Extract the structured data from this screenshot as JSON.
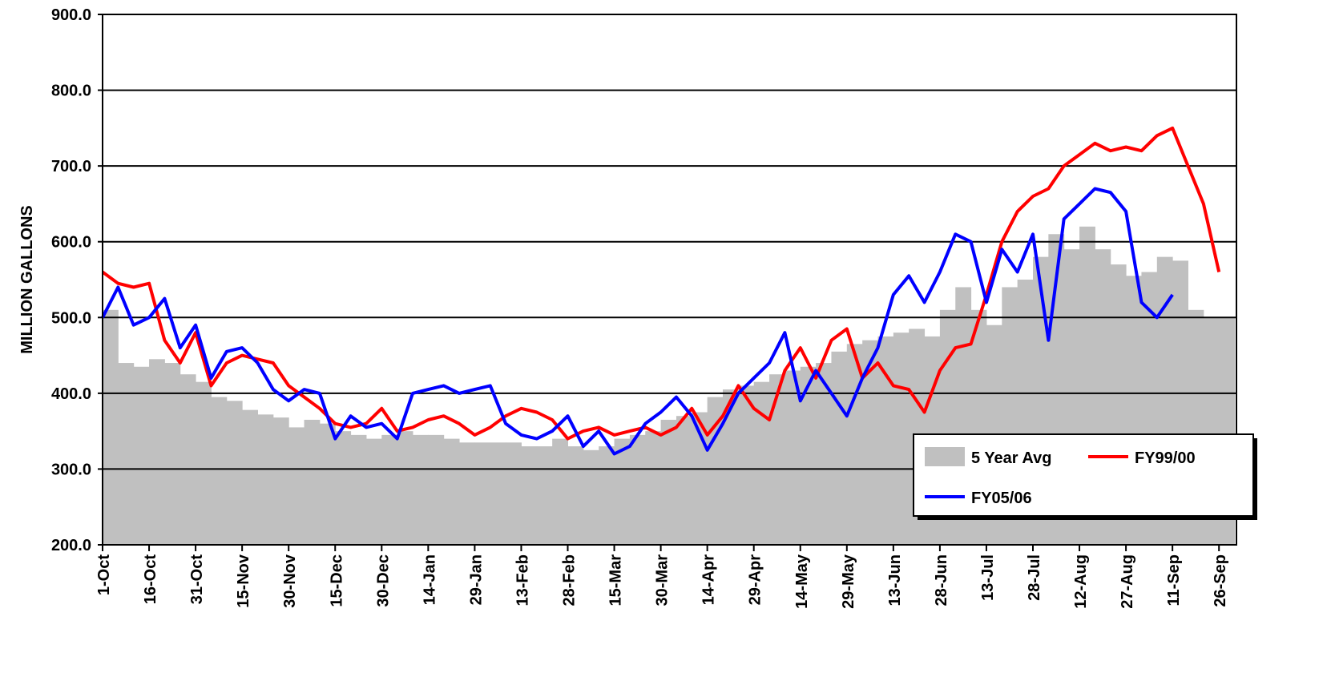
{
  "chart_data": {
    "type": "bar-line",
    "y_label": "MILLION GALLONS",
    "categories": [
      "1-Oct",
      null,
      null,
      "16-Oct",
      null,
      null,
      "31-Oct",
      null,
      null,
      "15-Nov",
      null,
      null,
      "30-Nov",
      null,
      null,
      "15-Dec",
      null,
      null,
      "30-Dec",
      null,
      null,
      "14-Jan",
      null,
      null,
      "29-Jan",
      null,
      null,
      "13-Feb",
      null,
      null,
      "28-Feb",
      null,
      null,
      "15-Mar",
      null,
      null,
      "30-Mar",
      null,
      null,
      "14-Apr",
      null,
      null,
      "29-Apr",
      null,
      null,
      "14-May",
      null,
      null,
      "29-May",
      null,
      null,
      "13-Jun",
      null,
      null,
      "28-Jun",
      null,
      null,
      "13-Jul",
      null,
      null,
      "28-Jul",
      null,
      null,
      "12-Aug",
      null,
      null,
      "27-Aug",
      null,
      null,
      "11-Sep",
      null,
      null,
      "26-Sep"
    ],
    "series": [
      {
        "name": "5 Year Avg",
        "kind": "bar",
        "color": "#c0c0c0",
        "values": [
          510,
          440,
          435,
          445,
          440,
          425,
          415,
          395,
          390,
          378,
          372,
          368,
          355,
          365,
          360,
          350,
          345,
          340,
          345,
          350,
          345,
          345,
          340,
          335,
          335,
          335,
          335,
          330,
          330,
          340,
          330,
          325,
          330,
          340,
          345,
          350,
          365,
          370,
          375,
          395,
          405,
          410,
          415,
          425,
          430,
          435,
          440,
          455,
          465,
          470,
          475,
          480,
          485,
          475,
          510,
          540,
          510,
          490,
          540,
          550,
          580,
          610,
          590,
          620,
          590,
          570,
          555,
          560,
          580,
          575,
          510,
          500,
          500
        ]
      },
      {
        "name": "FY99/00",
        "kind": "line",
        "color": "#ff0000",
        "values": [
          560,
          545,
          540,
          545,
          470,
          440,
          480,
          410,
          440,
          450,
          445,
          440,
          410,
          395,
          380,
          360,
          355,
          360,
          380,
          350,
          355,
          365,
          370,
          360,
          345,
          355,
          370,
          380,
          375,
          365,
          340,
          350,
          355,
          345,
          350,
          355,
          345,
          355,
          380,
          345,
          370,
          410,
          380,
          365,
          430,
          460,
          420,
          470,
          485,
          420,
          440,
          410,
          405,
          375,
          430,
          460,
          465,
          530,
          600,
          640,
          660,
          670,
          700,
          715,
          730,
          720,
          725,
          720,
          740,
          750,
          700,
          650,
          560
        ]
      },
      {
        "name": "FY05/06",
        "kind": "line",
        "color": "#0000ff",
        "values": [
          500,
          540,
          490,
          500,
          525,
          460,
          490,
          420,
          455,
          460,
          440,
          405,
          390,
          405,
          400,
          340,
          370,
          355,
          360,
          340,
          400,
          405,
          410,
          400,
          405,
          410,
          360,
          345,
          340,
          350,
          370,
          330,
          350,
          320,
          330,
          360,
          375,
          395,
          370,
          325,
          360,
          400,
          420,
          440,
          480,
          390,
          430,
          400,
          370,
          420,
          460,
          530,
          555,
          520,
          560,
          610,
          600,
          520,
          590,
          560,
          610,
          470,
          630,
          650,
          670,
          665,
          640,
          520,
          500,
          530,
          null,
          null,
          null
        ]
      }
    ],
    "ylim": [
      200,
      900
    ],
    "yticks": [
      {
        "value": 200,
        "label": "200.0"
      },
      {
        "value": 300,
        "label": "300.0"
      },
      {
        "value": 400,
        "label": "400.0"
      },
      {
        "value": 500,
        "label": "500.0"
      },
      {
        "value": 600,
        "label": "600.0"
      },
      {
        "value": 700,
        "label": "700.0"
      },
      {
        "value": 800,
        "label": "800.0"
      },
      {
        "value": 900,
        "label": "900.0"
      }
    ],
    "grid": true,
    "legend": "lower right"
  }
}
